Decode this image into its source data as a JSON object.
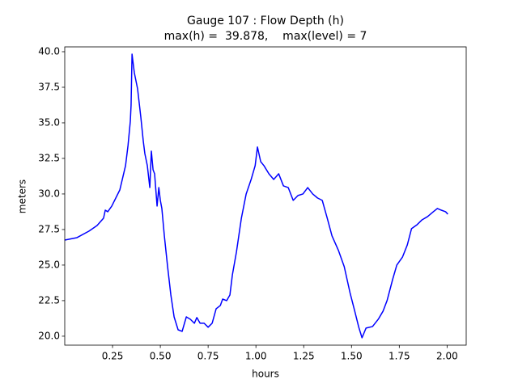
{
  "chart_data": {
    "type": "line",
    "title": "Gauge 107 : Flow Depth (h)",
    "subtitle": "max(h) =  39.878,    max(level) = 7",
    "x_label": "hours",
    "y_label": "meters",
    "xlim": [
      0,
      2.1
    ],
    "ylim": [
      19.37,
      40.34
    ],
    "xticks": [
      0.25,
      {
        "value": 0.5,
        "label": "0.50"
      },
      0.75,
      {
        "value": 1.0,
        "label": "1.00"
      },
      1.25,
      {
        "value": 1.5,
        "label": "1.50"
      },
      1.75,
      {
        "value": 2.0,
        "label": "2.00"
      }
    ],
    "yticks": [
      {
        "value": 20,
        "label": "20.0"
      },
      22.5,
      {
        "value": 25,
        "label": "25.0"
      },
      27.5,
      {
        "value": 30,
        "label": "30.0"
      },
      32.5,
      {
        "value": 35,
        "label": "35.0"
      },
      37.5,
      {
        "value": 40,
        "label": "40.0"
      }
    ],
    "grid": false,
    "x": [
      0,
      0.064,
      0.127,
      0.169,
      0.203,
      0.212,
      0.225,
      0.246,
      0.288,
      0.318,
      0.331,
      0.343,
      0.347,
      0.352,
      0.356,
      0.364,
      0.381,
      0.398,
      0.411,
      0.419,
      0.432,
      0.445,
      0.453,
      0.462,
      0.47,
      0.483,
      0.492,
      0.5,
      0.508,
      0.521,
      0.538,
      0.555,
      0.572,
      0.593,
      0.614,
      0.636,
      0.657,
      0.678,
      0.691,
      0.708,
      0.729,
      0.75,
      0.771,
      0.792,
      0.814,
      0.826,
      0.847,
      0.864,
      0.877,
      0.898,
      0.924,
      0.949,
      0.975,
      0.996,
      1.008,
      1.025,
      1.042,
      1.068,
      1.093,
      1.119,
      1.144,
      1.169,
      1.195,
      1.22,
      1.246,
      1.271,
      1.297,
      1.322,
      1.347,
      1.373,
      1.398,
      1.432,
      1.462,
      1.492,
      1.517,
      1.538,
      1.555,
      1.576,
      1.61,
      1.64,
      1.665,
      1.686,
      1.716,
      1.737,
      1.767,
      1.792,
      1.814,
      1.843,
      1.869,
      1.898,
      1.928,
      1.949,
      1.97,
      1.992,
      2.004
    ],
    "series": [
      {
        "name": "h",
        "color": "#0000ff",
        "values": [
          26.76,
          26.93,
          27.39,
          27.78,
          28.3,
          28.86,
          28.75,
          29.15,
          30.28,
          31.99,
          33.41,
          35.11,
          36.25,
          39.83,
          39.38,
          38.52,
          37.39,
          35.4,
          33.69,
          32.84,
          31.99,
          30.45,
          33.01,
          31.7,
          31.42,
          29.15,
          30.45,
          29.55,
          28.98,
          27.05,
          24.89,
          22.9,
          21.36,
          20.45,
          20.34,
          21.36,
          21.19,
          20.91,
          21.31,
          20.91,
          20.91,
          20.63,
          20.91,
          21.93,
          22.16,
          22.61,
          22.5,
          22.9,
          24.32,
          25.91,
          28.3,
          30.0,
          31.02,
          31.99,
          33.3,
          32.27,
          31.99,
          31.42,
          31.02,
          31.42,
          30.57,
          30.45,
          29.55,
          29.89,
          30.0,
          30.45,
          30.0,
          29.72,
          29.55,
          28.3,
          27.05,
          26.02,
          24.89,
          23.07,
          21.76,
          20.63,
          19.89,
          20.57,
          20.68,
          21.19,
          21.76,
          22.5,
          24.03,
          25.0,
          25.57,
          26.42,
          27.56,
          27.84,
          28.18,
          28.41,
          28.75,
          28.98,
          28.86,
          28.75,
          28.58
        ]
      }
    ]
  }
}
